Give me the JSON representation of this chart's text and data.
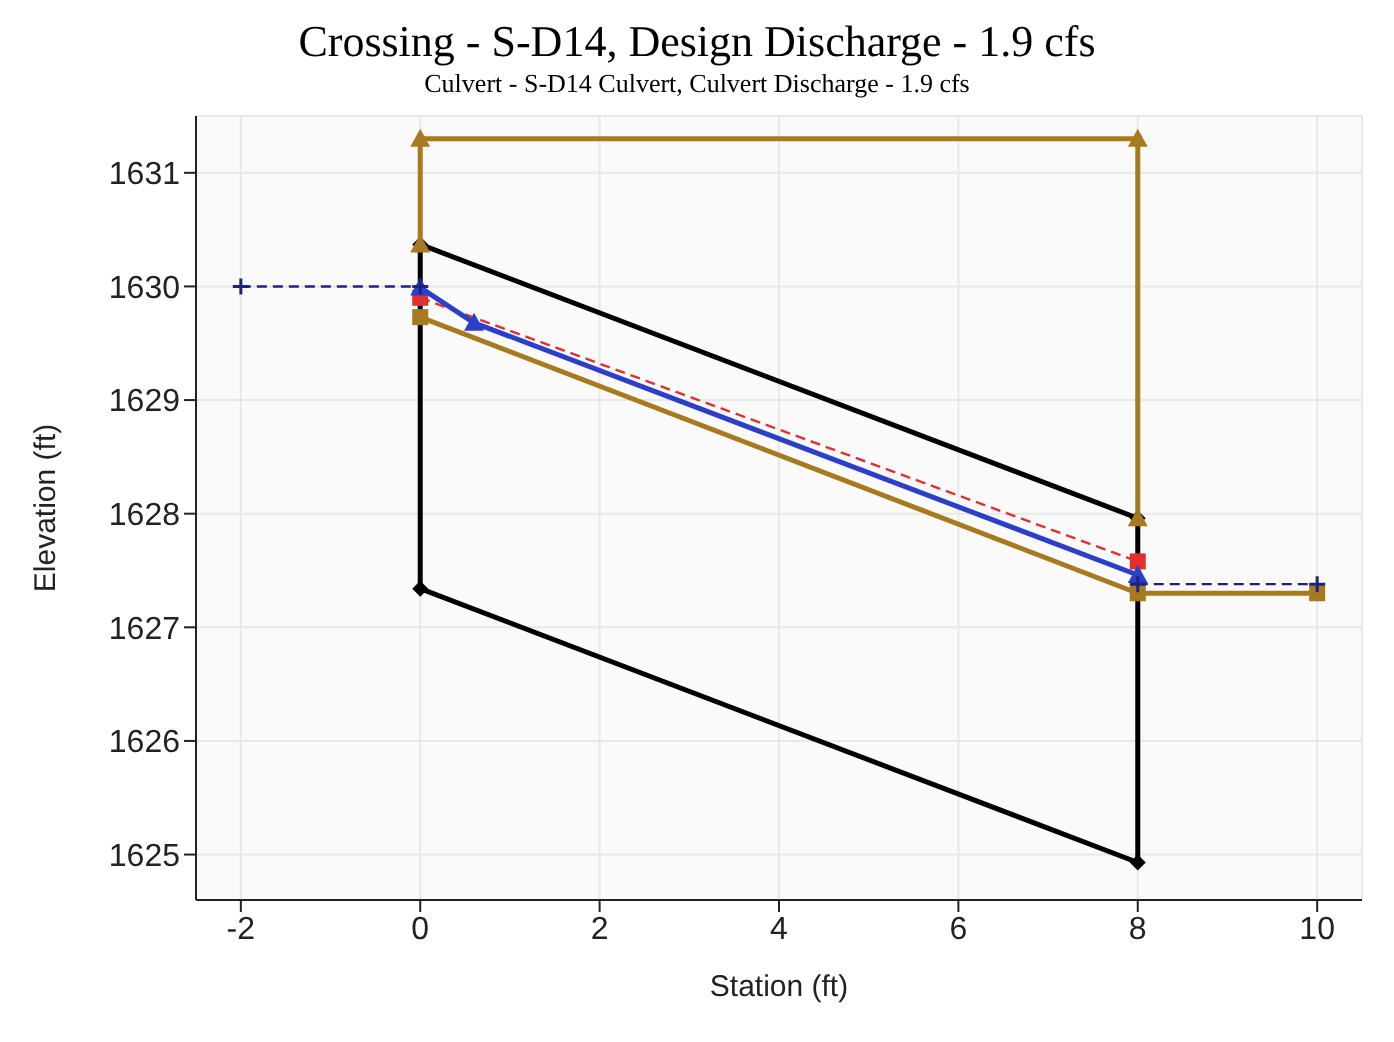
{
  "chart_data": {
    "type": "line",
    "title": "Crossing - S-D14, Design Discharge - 1.9 cfs",
    "subtitle": "Culvert - S-D14 Culvert, Culvert Discharge - 1.9 cfs",
    "xlabel": "Station (ft)",
    "ylabel": "Elevation (ft)",
    "xlim": [
      -2.5,
      10.5
    ],
    "xticks": [
      -2,
      0,
      2,
      4,
      6,
      8,
      10
    ],
    "ylim": [
      1624.6,
      1631.5
    ],
    "yticks": [
      1625,
      1626,
      1627,
      1628,
      1629,
      1630,
      1631
    ],
    "grid": true,
    "series": [
      {
        "color": "#000000",
        "x": [
          0,
          8
        ],
        "values": [
          1630.37,
          1627.96
        ],
        "marker": "diamond",
        "line_style": "solid"
      },
      {
        "color": "#000000",
        "x": [
          0,
          8
        ],
        "values": [
          1627.34,
          1624.93
        ],
        "marker": "diamond",
        "line_style": "solid"
      },
      {
        "color": "#000000",
        "x": [
          0,
          0
        ],
        "values": [
          1627.34,
          1630.37
        ],
        "marker": "none",
        "line_style": "solid"
      },
      {
        "color": "#000000",
        "x": [
          8,
          8
        ],
        "values": [
          1624.93,
          1627.96
        ],
        "marker": "none",
        "line_style": "solid"
      },
      {
        "color": "#a87a1f",
        "x": [
          0,
          0,
          8,
          8
        ],
        "values": [
          1630.37,
          1631.3,
          1631.3,
          1627.96
        ],
        "marker": "triangle",
        "line_style": "solid"
      },
      {
        "color": "#a87a1f",
        "x": [
          0,
          8,
          10
        ],
        "values": [
          1629.73,
          1627.3,
          1627.3
        ],
        "marker": "square",
        "line_style": "solid"
      },
      {
        "color": "#e03030",
        "x": [
          0,
          8
        ],
        "values": [
          1629.9,
          1627.58
        ],
        "marker": "square",
        "line_style": "dashed"
      },
      {
        "color": "#2b3fc8",
        "x": [
          0,
          0.6,
          8
        ],
        "values": [
          1629.99,
          1629.68,
          1627.46
        ],
        "marker": "triangle",
        "line_style": "solid"
      },
      {
        "color": "#1a237e",
        "x": [
          -2,
          0
        ],
        "values": [
          1630.0,
          1630.0
        ],
        "marker": "cross",
        "line_style": "dashed"
      },
      {
        "color": "#1a237e",
        "x": [
          8,
          10
        ],
        "values": [
          1627.38,
          1627.38
        ],
        "marker": "cross",
        "line_style": "dashed"
      }
    ]
  }
}
